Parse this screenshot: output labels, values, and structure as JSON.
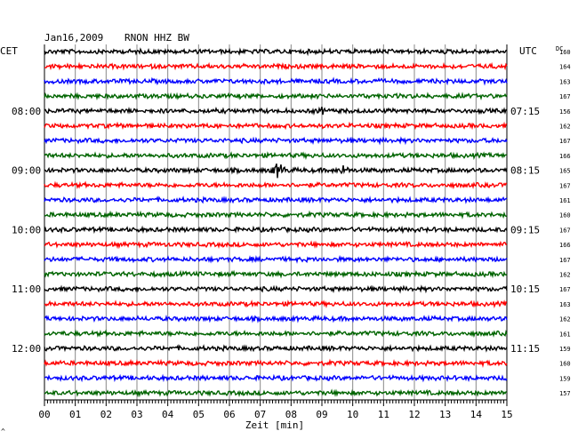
{
  "header": {
    "date": "Jan16,2009",
    "station": "RNON HHZ BW",
    "left_tz": "CET",
    "right_tz": "UTC",
    "dc_label": "DC",
    "footer_mark": "^"
  },
  "chart_data": {
    "type": "line",
    "title": "Jan16,2009   RNON HHZ BW",
    "xlabel": "Zeit [min]",
    "xlim": [
      0,
      15
    ],
    "x_ticks": [
      "00",
      "01",
      "02",
      "03",
      "04",
      "05",
      "06",
      "07",
      "08",
      "09",
      "10",
      "11",
      "12",
      "13",
      "14",
      "15"
    ],
    "grid": true,
    "row_colors": [
      "#000000",
      "#ff0000",
      "#0000ff",
      "#006400"
    ],
    "left_time_labels": [
      {
        "row": 4,
        "text": "08:00"
      },
      {
        "row": 8,
        "text": "09:00"
      },
      {
        "row": 12,
        "text": "10:00"
      },
      {
        "row": 16,
        "text": "11:00"
      },
      {
        "row": 20,
        "text": "12:00"
      }
    ],
    "right_time_labels": [
      {
        "row": 4,
        "text": "07:15"
      },
      {
        "row": 8,
        "text": "08:15"
      },
      {
        "row": 12,
        "text": "09:15"
      },
      {
        "row": 16,
        "text": "10:15"
      },
      {
        "row": 20,
        "text": "11:15"
      }
    ],
    "dc_offsets": [
      "160",
      "164",
      "163",
      "167",
      "156",
      "162",
      "167",
      "166",
      "165",
      "167",
      "161",
      "160",
      "167",
      "166",
      "167",
      "162",
      "167",
      "163",
      "162",
      "161",
      "159",
      "160",
      "159",
      "157"
    ],
    "events": [
      {
        "row": 8,
        "minute": 7.6,
        "amplitude": 1.0
      },
      {
        "row": 8,
        "minute": 9.7,
        "amplitude": 0.45
      },
      {
        "row": 4,
        "minute": 9.0,
        "amplitude": 0.25
      }
    ]
  }
}
